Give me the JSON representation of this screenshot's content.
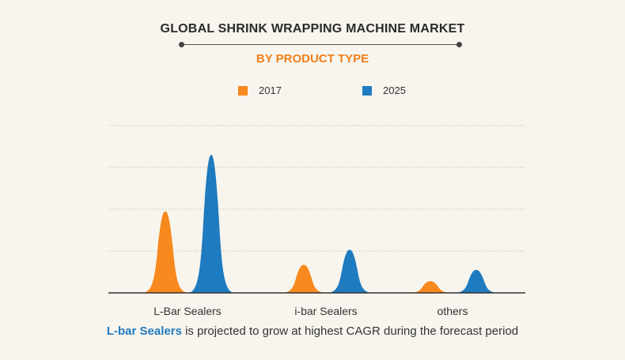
{
  "title": "GLOBAL SHRINK WRAPPING MACHINE  MARKET",
  "subtitle": "BY PRODUCT TYPE",
  "colors": {
    "series_2017": "#f7891e",
    "series_2025": "#1f7bbf",
    "subtitle": "#f07f1a",
    "grid": "#cfcac0",
    "axis": "#333333"
  },
  "footnote": {
    "highlight": "L-bar Sealers",
    "rest": " is projected to grow at highest CAGR during the forecast period"
  },
  "chart_data": {
    "type": "area",
    "categories": [
      "L-Bar Sealers",
      "i-bar Sealers",
      "others"
    ],
    "series": [
      {
        "name": "2017",
        "values": [
          1.95,
          0.67,
          0.28
        ]
      },
      {
        "name": "2025",
        "values": [
          3.3,
          1.03,
          0.55
        ]
      }
    ],
    "ylim": [
      0,
      4
    ],
    "grid": true,
    "legend": "top-center",
    "xlabel": "",
    "ylabel": ""
  }
}
